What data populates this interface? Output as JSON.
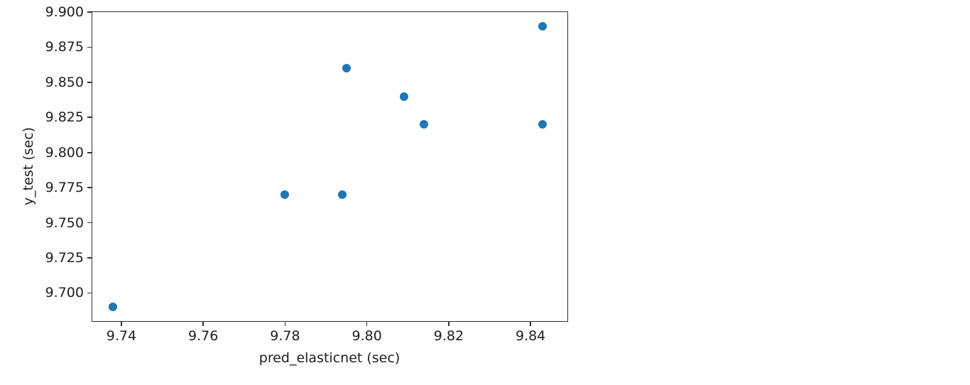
{
  "figure": {
    "background_color": "#ffffff",
    "spine_color": "#333333",
    "text_color": "#1f1f1f"
  },
  "chart_data": {
    "type": "scatter",
    "title": "",
    "xlabel": "pred_elasticnet (sec)",
    "ylabel": "y_test (sec)",
    "xlim": [
      9.7329,
      9.849
    ],
    "ylim": [
      9.68,
      9.9
    ],
    "grid": false,
    "legend_position": "none",
    "marker_color": "#1f77b4",
    "marker_diameter_px": 12,
    "x_ticks": [
      {
        "value": 9.74,
        "label": "9.74"
      },
      {
        "value": 9.76,
        "label": "9.76"
      },
      {
        "value": 9.78,
        "label": "9.78"
      },
      {
        "value": 9.8,
        "label": "9.80"
      },
      {
        "value": 9.82,
        "label": "9.82"
      },
      {
        "value": 9.84,
        "label": "9.84"
      }
    ],
    "y_ticks": [
      {
        "value": 9.7,
        "label": "9.700"
      },
      {
        "value": 9.725,
        "label": "9.725"
      },
      {
        "value": 9.75,
        "label": "9.750"
      },
      {
        "value": 9.775,
        "label": "9.775"
      },
      {
        "value": 9.8,
        "label": "9.800"
      },
      {
        "value": 9.825,
        "label": "9.825"
      },
      {
        "value": 9.85,
        "label": "9.850"
      },
      {
        "value": 9.875,
        "label": "9.875"
      },
      {
        "value": 9.9,
        "label": "9.900"
      }
    ],
    "points": [
      {
        "x": 9.738,
        "y": 9.69
      },
      {
        "x": 9.78,
        "y": 9.77
      },
      {
        "x": 9.794,
        "y": 9.77
      },
      {
        "x": 9.795,
        "y": 9.86
      },
      {
        "x": 9.809,
        "y": 9.84
      },
      {
        "x": 9.814,
        "y": 9.82
      },
      {
        "x": 9.843,
        "y": 9.89
      },
      {
        "x": 9.843,
        "y": 9.82
      }
    ]
  }
}
